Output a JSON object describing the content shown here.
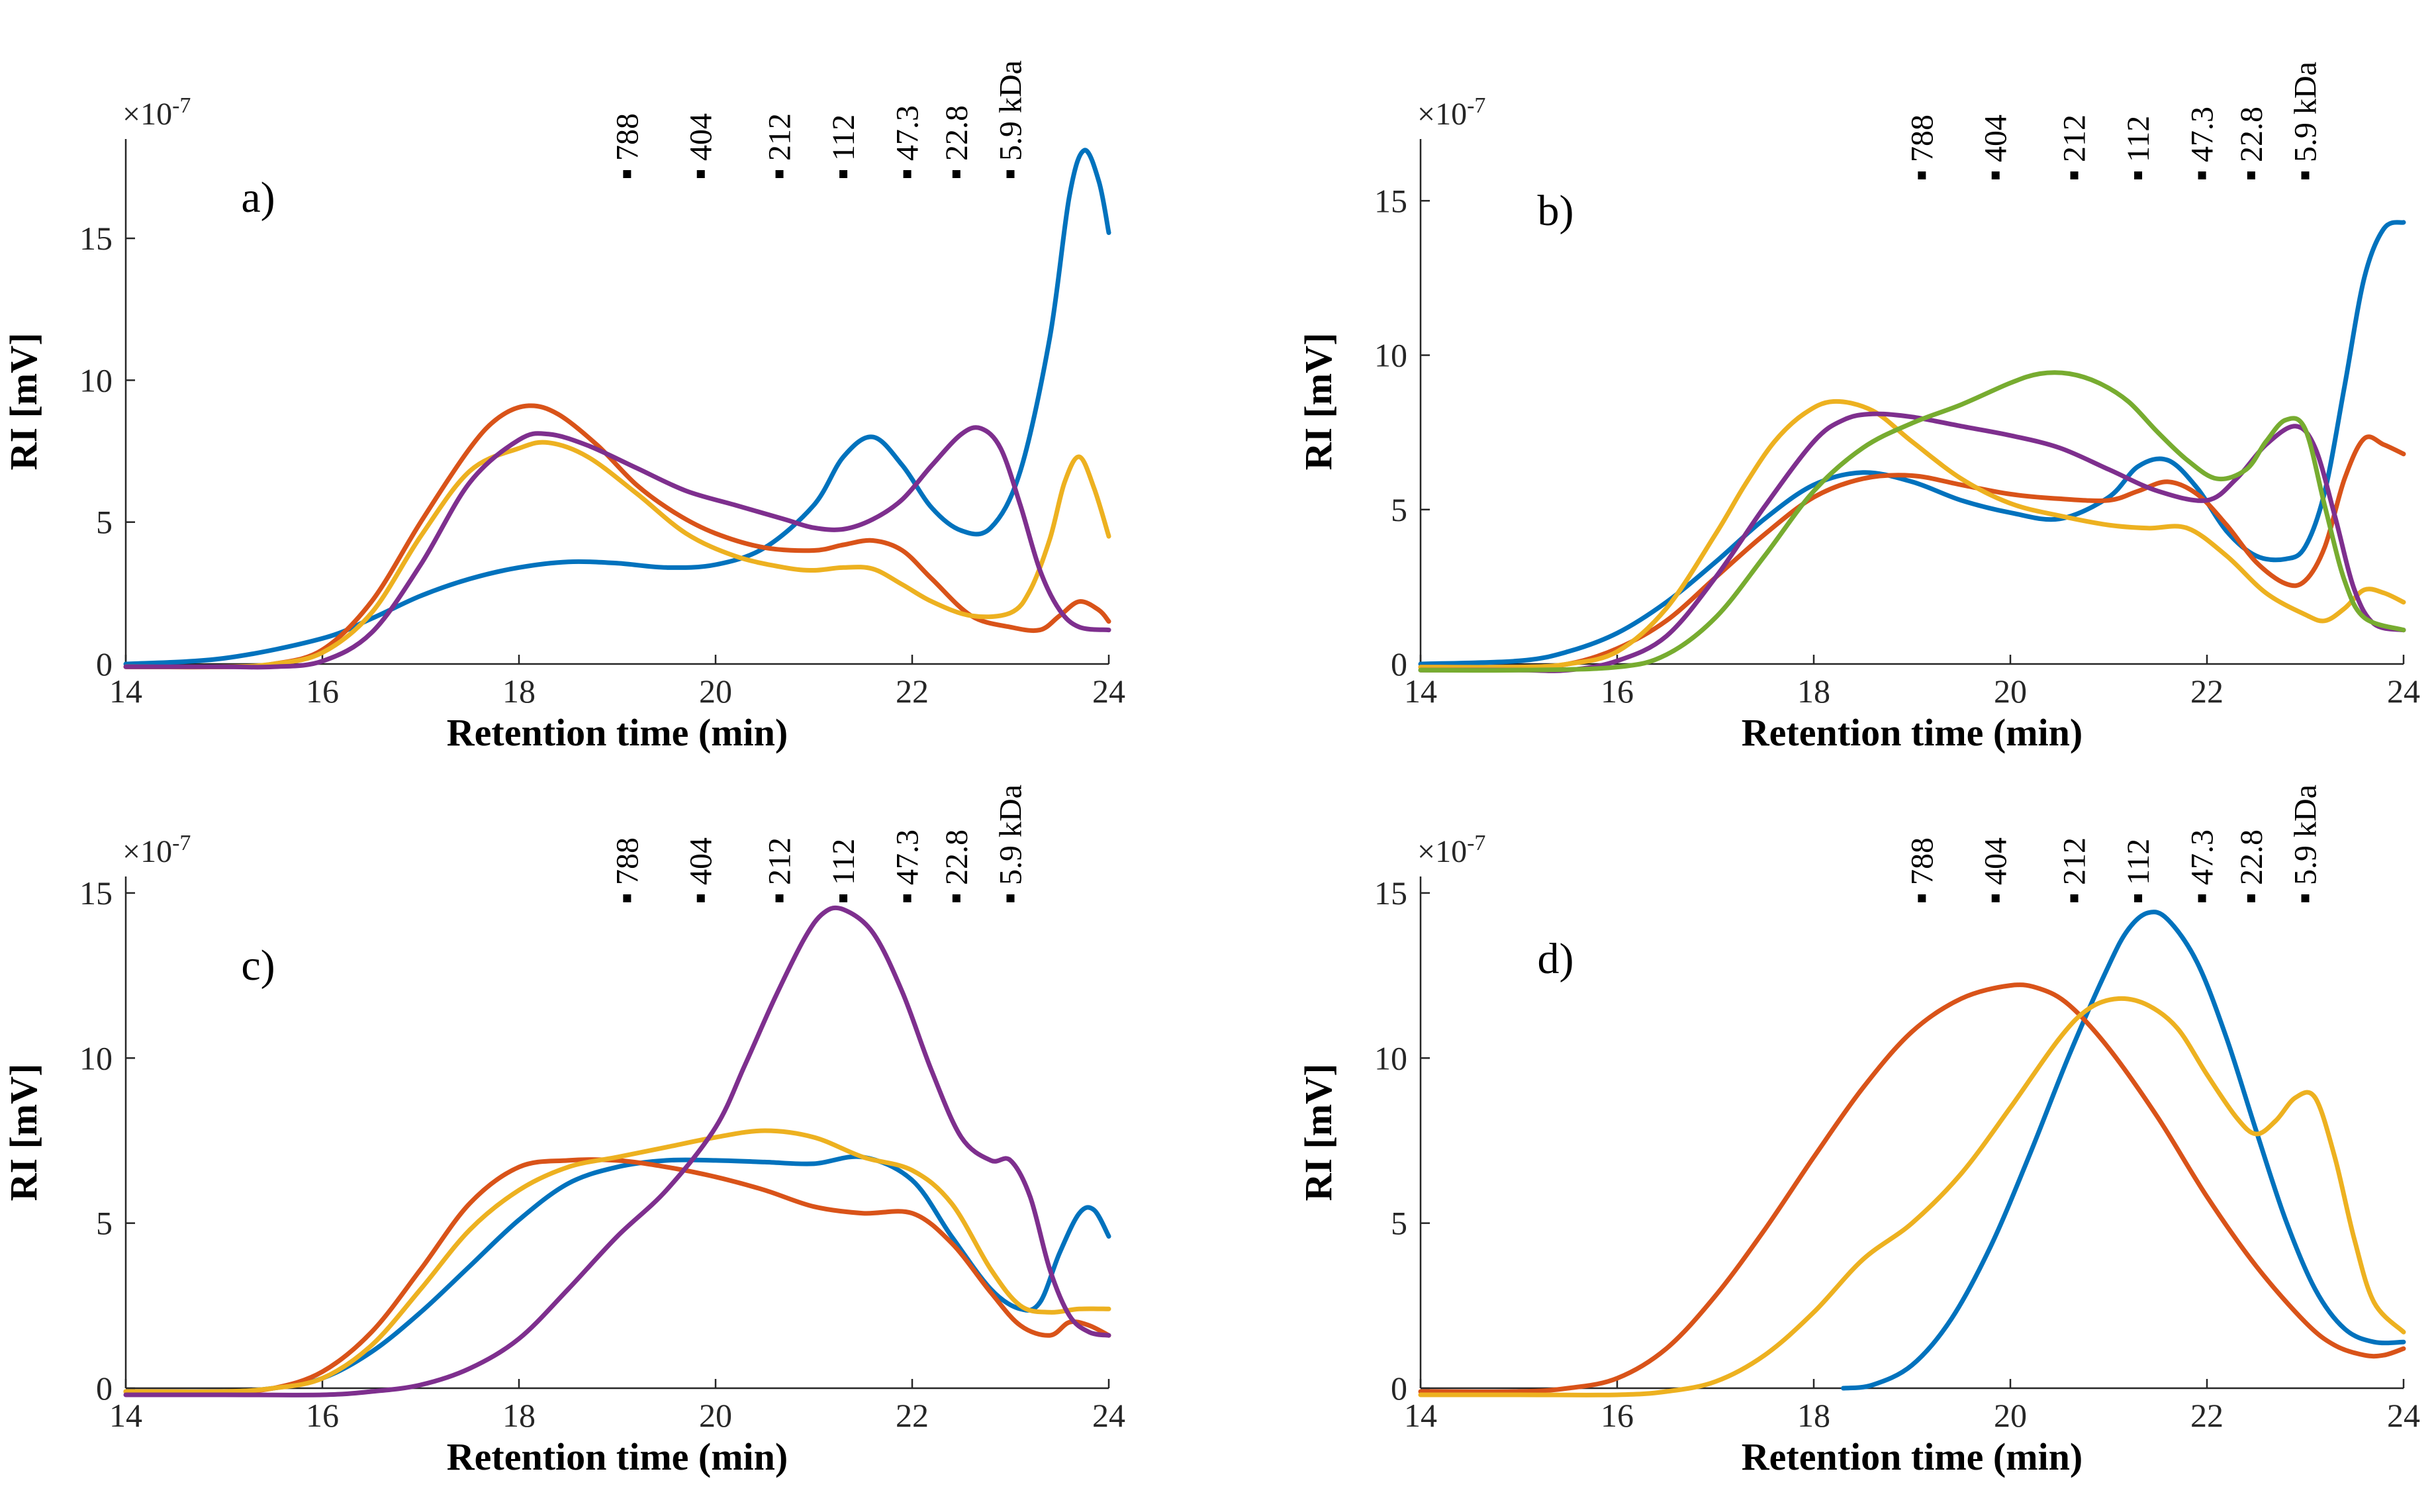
{
  "chart_data": [
    {
      "type": "line",
      "panel_label": "a)",
      "xlabel": "Retention time (min)",
      "ylabel": "RI [mV]",
      "y_multiplier": "×10",
      "y_exponent": "-7",
      "xlim": [
        14,
        24
      ],
      "ylim": [
        0,
        18.5
      ],
      "xticks": [
        14,
        16,
        18,
        20,
        22,
        24
      ],
      "yticks": [
        0,
        5,
        10,
        15
      ],
      "markers": [
        {
          "label": "788",
          "x": 19.1
        },
        {
          "label": "404",
          "x": 19.85
        },
        {
          "label": "212",
          "x": 20.65
        },
        {
          "label": "112",
          "x": 21.3
        },
        {
          "label": "47.3",
          "x": 21.95
        },
        {
          "label": "22.8",
          "x": 22.45
        },
        {
          "label": "5.9 kDa",
          "x": 23.0
        }
      ],
      "series": [
        {
          "name": "blue",
          "color": "#0072BD",
          "x": [
            14,
            15,
            16,
            16.5,
            17,
            17.5,
            18,
            18.5,
            19,
            19.5,
            20,
            20.5,
            21,
            21.3,
            21.6,
            21.9,
            22.2,
            22.5,
            22.8,
            23.1,
            23.4,
            23.6,
            23.75,
            23.9,
            24
          ],
          "y": [
            0,
            0.2,
            0.9,
            1.6,
            2.4,
            3.0,
            3.4,
            3.6,
            3.55,
            3.4,
            3.5,
            4.1,
            5.6,
            7.3,
            8.0,
            7.0,
            5.5,
            4.7,
            4.8,
            6.8,
            11.5,
            16.5,
            18.1,
            17.0,
            15.2
          ]
        },
        {
          "name": "red",
          "color": "#D95319",
          "x": [
            14,
            15,
            15.5,
            16,
            16.5,
            17,
            17.5,
            17.8,
            18.1,
            18.4,
            18.8,
            19.2,
            19.6,
            20,
            20.5,
            21,
            21.3,
            21.6,
            21.9,
            22.2,
            22.6,
            23,
            23.3,
            23.5,
            23.7,
            23.9,
            24
          ],
          "y": [
            -0.1,
            -0.1,
            0,
            0.5,
            2.2,
            5.0,
            7.6,
            8.7,
            9.1,
            8.8,
            7.7,
            6.3,
            5.3,
            4.6,
            4.1,
            4.0,
            4.2,
            4.35,
            4.0,
            3.0,
            1.7,
            1.3,
            1.2,
            1.7,
            2.2,
            1.9,
            1.5
          ]
        },
        {
          "name": "yellow",
          "color": "#EDB120",
          "x": [
            14,
            15,
            15.5,
            16,
            16.5,
            17,
            17.5,
            18,
            18.3,
            18.7,
            19.2,
            19.7,
            20.2,
            20.7,
            21,
            21.3,
            21.6,
            21.9,
            22.2,
            22.6,
            23,
            23.2,
            23.4,
            23.55,
            23.7,
            23.85,
            24
          ],
          "y": [
            -0.1,
            -0.1,
            0,
            0.4,
            1.8,
            4.5,
            6.8,
            7.6,
            7.8,
            7.3,
            6.0,
            4.6,
            3.8,
            3.4,
            3.3,
            3.4,
            3.35,
            2.8,
            2.2,
            1.7,
            1.8,
            2.6,
            4.4,
            6.4,
            7.3,
            6.2,
            4.5
          ]
        },
        {
          "name": "purple",
          "color": "#7E2F8E",
          "x": [
            14,
            15,
            15.5,
            16,
            16.5,
            17,
            17.5,
            18,
            18.3,
            18.7,
            19.2,
            19.7,
            20.2,
            20.7,
            21,
            21.3,
            21.6,
            21.9,
            22.2,
            22.5,
            22.7,
            22.9,
            23.1,
            23.3,
            23.5,
            23.7,
            24
          ],
          "y": [
            -0.1,
            -0.1,
            -0.1,
            0.1,
            1.1,
            3.5,
            6.4,
            7.9,
            8.1,
            7.7,
            6.9,
            6.1,
            5.6,
            5.1,
            4.8,
            4.75,
            5.1,
            5.8,
            7.0,
            8.1,
            8.3,
            7.6,
            5.6,
            3.3,
            1.9,
            1.3,
            1.2
          ]
        }
      ]
    },
    {
      "type": "line",
      "panel_label": "b)",
      "xlabel": "Retention time (min)",
      "ylabel": "RI [mV]",
      "y_multiplier": "×10",
      "y_exponent": "-7",
      "xlim": [
        14,
        24
      ],
      "ylim": [
        0,
        17
      ],
      "xticks": [
        14,
        16,
        18,
        20,
        22,
        24
      ],
      "yticks": [
        0,
        5,
        10,
        15
      ],
      "markers": [
        {
          "label": "788",
          "x": 19.1
        },
        {
          "label": "404",
          "x": 19.85
        },
        {
          "label": "212",
          "x": 20.65
        },
        {
          "label": "112",
          "x": 21.3
        },
        {
          "label": "47.3",
          "x": 21.95
        },
        {
          "label": "22.8",
          "x": 22.45
        },
        {
          "label": "5.9 kDa",
          "x": 23.0
        }
      ],
      "series": [
        {
          "name": "blue",
          "color": "#0072BD",
          "x": [
            14,
            15,
            15.5,
            16,
            16.5,
            17,
            17.5,
            18,
            18.5,
            19,
            19.5,
            20,
            20.5,
            21,
            21.3,
            21.6,
            21.9,
            22.2,
            22.5,
            22.8,
            23,
            23.2,
            23.4,
            23.6,
            23.8,
            24
          ],
          "y": [
            0,
            0.1,
            0.4,
            1.0,
            2.0,
            3.3,
            4.7,
            5.8,
            6.2,
            5.9,
            5.3,
            4.9,
            4.7,
            5.4,
            6.4,
            6.6,
            5.7,
            4.3,
            3.5,
            3.4,
            3.8,
            5.6,
            9.0,
            12.5,
            14.1,
            14.3
          ]
        },
        {
          "name": "red",
          "color": "#D95319",
          "x": [
            14,
            15,
            15.5,
            16,
            16.5,
            17,
            17.5,
            18,
            18.5,
            19,
            19.5,
            20,
            20.5,
            21,
            21.3,
            21.6,
            21.9,
            22.2,
            22.5,
            22.8,
            23,
            23.2,
            23.4,
            23.6,
            23.8,
            24
          ],
          "y": [
            -0.1,
            -0.1,
            0,
            0.5,
            1.4,
            2.8,
            4.2,
            5.4,
            6.0,
            6.1,
            5.8,
            5.5,
            5.35,
            5.3,
            5.6,
            5.9,
            5.5,
            4.5,
            3.3,
            2.6,
            2.7,
            3.8,
            6.0,
            7.3,
            7.1,
            6.8
          ]
        },
        {
          "name": "yellow",
          "color": "#EDB120",
          "x": [
            14,
            15,
            15.5,
            16,
            16.5,
            17,
            17.3,
            17.6,
            17.9,
            18.2,
            18.6,
            19,
            19.5,
            20,
            20.5,
            21,
            21.4,
            21.8,
            22.2,
            22.6,
            23,
            23.2,
            23.4,
            23.6,
            23.8,
            24
          ],
          "y": [
            -0.1,
            -0.1,
            0,
            0.4,
            1.8,
            4.2,
            5.8,
            7.2,
            8.1,
            8.5,
            8.2,
            7.2,
            6.0,
            5.2,
            4.8,
            4.5,
            4.4,
            4.4,
            3.5,
            2.3,
            1.6,
            1.4,
            1.8,
            2.4,
            2.3,
            2.0
          ]
        },
        {
          "name": "purple",
          "color": "#7E2F8E",
          "x": [
            14,
            15,
            15.5,
            16,
            16.5,
            17,
            17.5,
            18,
            18.3,
            18.6,
            19,
            19.5,
            20,
            20.5,
            21,
            21.5,
            22,
            22.3,
            22.6,
            22.9,
            23.1,
            23.3,
            23.5,
            23.7,
            24
          ],
          "y": [
            -0.2,
            -0.2,
            -0.2,
            0.1,
            0.9,
            2.8,
            5.1,
            7.2,
            7.9,
            8.1,
            8.0,
            7.7,
            7.4,
            7.0,
            6.3,
            5.6,
            5.3,
            6.0,
            7.1,
            7.7,
            7.0,
            4.8,
            2.4,
            1.3,
            1.1
          ]
        },
        {
          "name": "green",
          "color": "#77AC30",
          "x": [
            14,
            15,
            16,
            16.5,
            17,
            17.5,
            18,
            18.5,
            19,
            19.5,
            20,
            20.3,
            20.6,
            20.9,
            21.2,
            21.5,
            21.8,
            22.1,
            22.4,
            22.6,
            22.8,
            23,
            23.2,
            23.4,
            23.6,
            24
          ],
          "y": [
            -0.2,
            -0.2,
            -0.1,
            0.3,
            1.5,
            3.5,
            5.6,
            7.0,
            7.8,
            8.4,
            9.1,
            9.4,
            9.4,
            9.1,
            8.5,
            7.5,
            6.6,
            6.0,
            6.3,
            7.2,
            7.9,
            7.6,
            5.1,
            2.7,
            1.5,
            1.1
          ]
        }
      ]
    },
    {
      "type": "line",
      "panel_label": "c)",
      "xlabel": "Retention time (min)",
      "ylabel": "RI [mV]",
      "y_multiplier": "×10",
      "y_exponent": "-7",
      "xlim": [
        14,
        24
      ],
      "ylim": [
        0,
        15.5
      ],
      "xticks": [
        14,
        16,
        18,
        20,
        22,
        24
      ],
      "yticks": [
        0,
        5,
        10,
        15
      ],
      "markers": [
        {
          "label": "788",
          "x": 19.1
        },
        {
          "label": "404",
          "x": 19.85
        },
        {
          "label": "212",
          "x": 20.65
        },
        {
          "label": "112",
          "x": 21.3
        },
        {
          "label": "47.3",
          "x": 21.95
        },
        {
          "label": "22.8",
          "x": 22.45
        },
        {
          "label": "5.9 kDa",
          "x": 23.0
        }
      ],
      "series": [
        {
          "name": "blue",
          "color": "#0072BD",
          "x": [
            14,
            15,
            15.5,
            16,
            16.5,
            17,
            17.5,
            18,
            18.5,
            19,
            19.5,
            20,
            20.5,
            21,
            21.5,
            22,
            22.4,
            22.8,
            23.1,
            23.3,
            23.5,
            23.7,
            23.85,
            24
          ],
          "y": [
            -0.1,
            -0.1,
            0,
            0.3,
            1.1,
            2.3,
            3.7,
            5.1,
            6.2,
            6.7,
            6.9,
            6.9,
            6.85,
            6.8,
            7.0,
            6.3,
            4.6,
            3.0,
            2.4,
            2.6,
            4.1,
            5.3,
            5.4,
            4.6
          ]
        },
        {
          "name": "red",
          "color": "#D95319",
          "x": [
            14,
            15,
            15.5,
            16,
            16.5,
            17,
            17.5,
            18,
            18.5,
            19,
            19.5,
            20,
            20.5,
            21,
            21.5,
            22,
            22.4,
            22.8,
            23.1,
            23.4,
            23.6,
            23.8,
            24
          ],
          "y": [
            -0.1,
            -0.1,
            0,
            0.5,
            1.7,
            3.6,
            5.6,
            6.7,
            6.9,
            6.9,
            6.7,
            6.4,
            6.0,
            5.5,
            5.3,
            5.3,
            4.4,
            2.9,
            1.9,
            1.6,
            2.0,
            1.9,
            1.6
          ]
        },
        {
          "name": "yellow",
          "color": "#EDB120",
          "x": [
            14,
            15,
            15.5,
            16,
            16.5,
            17,
            17.5,
            18,
            18.5,
            19,
            19.5,
            20,
            20.5,
            21,
            21.5,
            22,
            22.4,
            22.8,
            23.1,
            23.4,
            23.7,
            24
          ],
          "y": [
            -0.1,
            -0.1,
            0,
            0.3,
            1.3,
            3.0,
            4.8,
            6.0,
            6.7,
            7.0,
            7.3,
            7.6,
            7.8,
            7.6,
            7.0,
            6.6,
            5.6,
            3.6,
            2.5,
            2.3,
            2.4,
            2.4
          ]
        },
        {
          "name": "purple",
          "color": "#7E2F8E",
          "x": [
            14,
            15,
            16,
            16.5,
            17,
            17.5,
            18,
            18.5,
            19,
            19.5,
            20,
            20.3,
            20.6,
            20.9,
            21.1,
            21.3,
            21.6,
            21.9,
            22.2,
            22.5,
            22.8,
            23,
            23.2,
            23.4,
            23.6,
            23.8,
            24
          ],
          "y": [
            -0.2,
            -0.2,
            -0.2,
            -0.1,
            0.1,
            0.6,
            1.5,
            3.0,
            4.6,
            6.0,
            7.9,
            9.8,
            11.8,
            13.6,
            14.4,
            14.5,
            13.8,
            12.0,
            9.6,
            7.6,
            6.9,
            6.9,
            5.8,
            3.6,
            2.2,
            1.7,
            1.6
          ]
        }
      ]
    },
    {
      "type": "line",
      "panel_label": "d)",
      "xlabel": "Retention time (min)",
      "ylabel": "RI [mV]",
      "y_multiplier": "×10",
      "y_exponent": "-7",
      "xlim": [
        14,
        24
      ],
      "ylim": [
        0,
        15.5
      ],
      "xticks": [
        14,
        16,
        18,
        20,
        22,
        24
      ],
      "yticks": [
        0,
        5,
        10,
        15
      ],
      "markers": [
        {
          "label": "788",
          "x": 19.1
        },
        {
          "label": "404",
          "x": 19.85
        },
        {
          "label": "212",
          "x": 20.65
        },
        {
          "label": "112",
          "x": 21.3
        },
        {
          "label": "47.3",
          "x": 21.95
        },
        {
          "label": "22.8",
          "x": 22.45
        },
        {
          "label": "5.9 kDa",
          "x": 23.0
        }
      ],
      "series": [
        {
          "name": "blue",
          "color": "#0072BD",
          "x": [
            18.3,
            18.6,
            19,
            19.4,
            19.8,
            20.2,
            20.6,
            21,
            21.2,
            21.4,
            21.6,
            21.9,
            22.2,
            22.5,
            22.8,
            23.1,
            23.4,
            23.7,
            24
          ],
          "y": [
            0,
            0.1,
            0.7,
            2.1,
            4.3,
            7.1,
            10.1,
            12.8,
            13.9,
            14.4,
            14.2,
            12.9,
            10.6,
            7.8,
            5.1,
            3.0,
            1.8,
            1.4,
            1.4
          ]
        },
        {
          "name": "red",
          "color": "#D95319",
          "x": [
            14,
            15,
            15.5,
            16,
            16.5,
            17,
            17.5,
            18,
            18.5,
            19,
            19.5,
            20,
            20.3,
            20.6,
            21,
            21.5,
            22,
            22.5,
            23,
            23.3,
            23.6,
            23.8,
            24
          ],
          "y": [
            -0.1,
            -0.1,
            0,
            0.3,
            1.2,
            2.8,
            4.8,
            7.0,
            9.1,
            10.8,
            11.8,
            12.2,
            12.1,
            11.6,
            10.3,
            8.2,
            5.8,
            3.7,
            2.0,
            1.3,
            1.0,
            1.0,
            1.2
          ]
        },
        {
          "name": "yellow",
          "color": "#EDB120",
          "x": [
            14,
            15,
            16,
            16.5,
            17,
            17.5,
            18,
            18.5,
            19,
            19.5,
            20,
            20.5,
            20.8,
            21.1,
            21.4,
            21.7,
            22,
            22.3,
            22.5,
            22.7,
            22.9,
            23.1,
            23.3,
            23.5,
            23.7,
            24
          ],
          "y": [
            -0.2,
            -0.2,
            -0.2,
            -0.1,
            0.2,
            1.0,
            2.3,
            3.9,
            5.0,
            6.5,
            8.5,
            10.6,
            11.5,
            11.8,
            11.6,
            10.9,
            9.5,
            8.2,
            7.7,
            8.1,
            8.8,
            8.8,
            7.0,
            4.5,
            2.6,
            1.7
          ]
        }
      ]
    }
  ]
}
